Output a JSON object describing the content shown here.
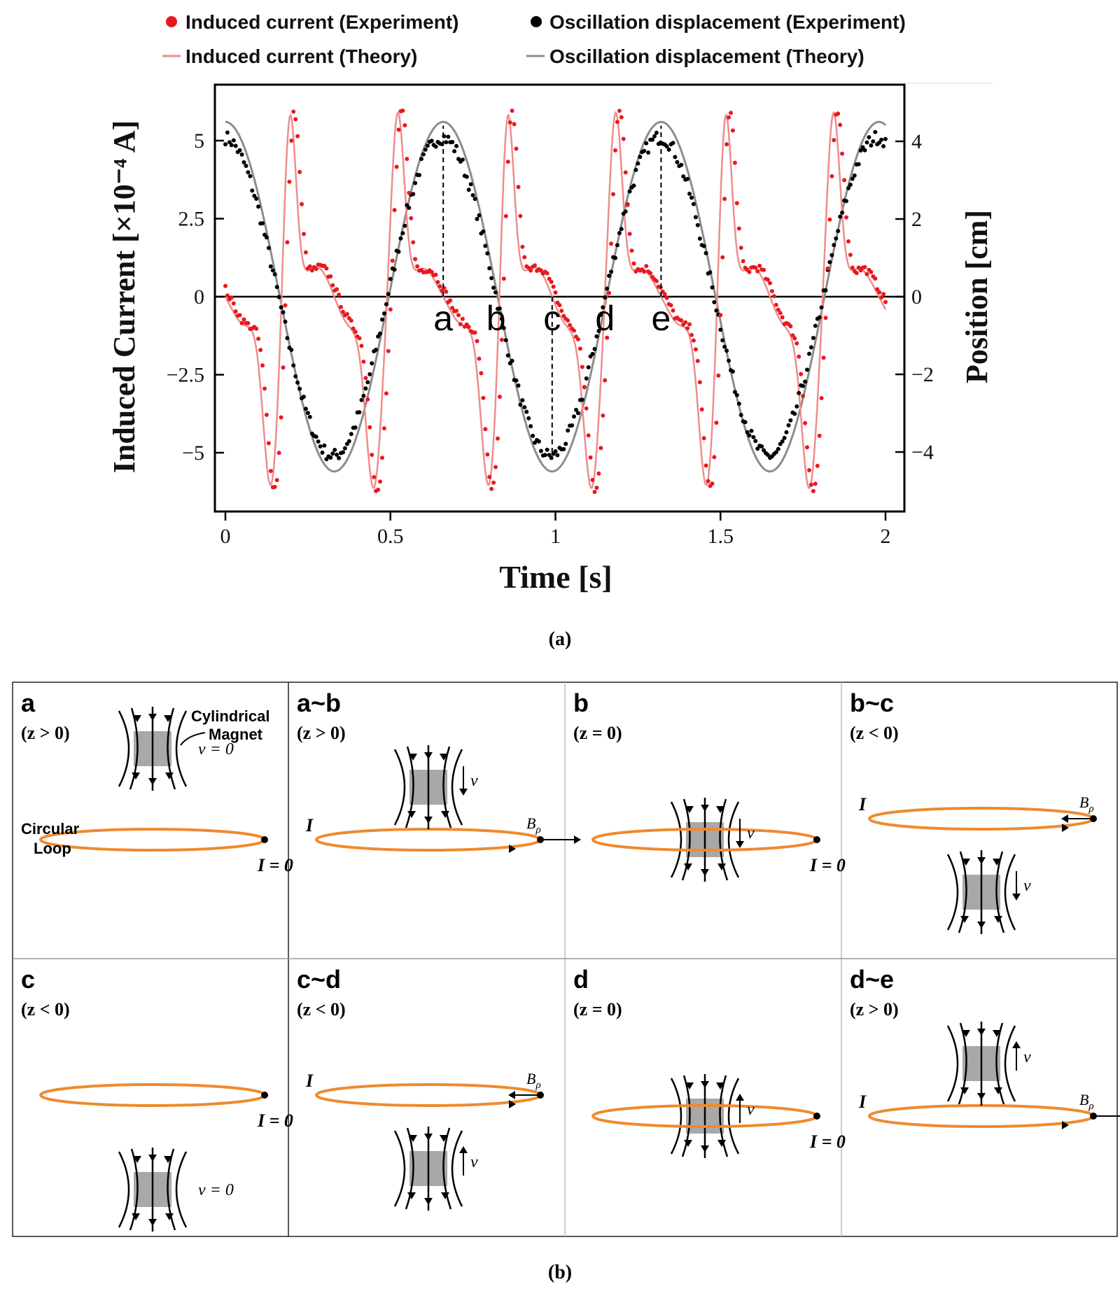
{
  "figure": {
    "caption_a": "(a)",
    "caption_b": "(b)"
  },
  "chart_data": {
    "type": "line",
    "xlabel": "Time [s]",
    "ylabel_left": "Induced Current [×10⁻⁴ A]",
    "ylabel_right": "Position [cm]",
    "xlim": [
      0,
      2
    ],
    "ylim_left": [
      -6.5,
      6.8
    ],
    "ylim_right": [
      -5.2,
      5.44
    ],
    "x_ticks": [
      "0",
      "0.5",
      "1",
      "1.5",
      "2"
    ],
    "y_left_ticks": [
      "−5",
      "−2.5",
      "0",
      "2.5",
      "5"
    ],
    "y_right_ticks": [
      "−4",
      "−2",
      "0",
      "2",
      "4"
    ],
    "legend_position": "top",
    "legend": [
      {
        "label": "Induced current (Experiment)",
        "marker": "dot",
        "color": "#e8191e"
      },
      {
        "label": "Oscillation displacement (Experiment)",
        "marker": "dot",
        "color": "#000000"
      },
      {
        "label": "Induced current (Theory)",
        "marker": "line",
        "color": "#f08c8c"
      },
      {
        "label": "Oscillation displacement (Theory)",
        "marker": "line",
        "color": "#8c8c8c"
      }
    ],
    "series": [
      {
        "name": "Oscillation displacement (Theory)",
        "axis": "right",
        "model": "cosine",
        "amplitude_cm": 4.5,
        "period_s": 0.66,
        "color": "#8c8c8c"
      },
      {
        "name": "Induced current (Theory)",
        "axis": "left",
        "model": "pulse",
        "peak_1e-4A": 6.0,
        "period_s": 0.66,
        "color": "#f08c8c"
      },
      {
        "name": "Oscillation displacement (Experiment)",
        "axis": "right",
        "model": "cosine",
        "amplitude_cm": 4.1,
        "period_s": 0.66,
        "color": "#000000"
      },
      {
        "name": "Induced current (Experiment)",
        "axis": "left",
        "model": "pulse",
        "peak_1e-4A": 6.1,
        "period_s": 0.66,
        "color": "#e8191e"
      }
    ],
    "markers": [
      {
        "label": "a",
        "t": 0.66,
        "line_to": 5.4
      },
      {
        "label": "b",
        "t": 0.82
      },
      {
        "label": "c",
        "t": 0.99,
        "line_to": -5.0
      },
      {
        "label": "d",
        "t": 1.15
      },
      {
        "label": "e",
        "t": 1.32,
        "line_to": 5.4
      }
    ]
  },
  "panels": [
    {
      "id": "a",
      "title": "a",
      "cond": "(z > 0)",
      "magnet": "above",
      "vel": "v = 0",
      "arrow": "none",
      "current": "I = 0",
      "magnet_label": "Cylindrical Magnet",
      "loop_label": "Circular Loop"
    },
    {
      "id": "a-b",
      "title": "a~b",
      "cond": "(z > 0)",
      "magnet": "near-above",
      "vel": "v",
      "arrow": "down",
      "current": "I",
      "field": "B",
      "field_sub": "ρ",
      "field_dir": "out"
    },
    {
      "id": "b",
      "title": "b",
      "cond": "(z = 0)",
      "magnet": "center",
      "vel": "v",
      "arrow": "down",
      "current": "I = 0"
    },
    {
      "id": "b-c",
      "title": "b~c",
      "cond": "(z < 0)",
      "magnet": "near-below",
      "vel": "v",
      "arrow": "down",
      "current": "I",
      "field": "B",
      "field_sub": "ρ",
      "field_dir": "in"
    },
    {
      "id": "c",
      "title": "c",
      "cond": "(z < 0)",
      "magnet": "below",
      "vel": "v = 0",
      "arrow": "none",
      "current": "I = 0"
    },
    {
      "id": "c-d",
      "title": "c~d",
      "cond": "(z < 0)",
      "magnet": "near-below",
      "vel": "v",
      "arrow": "up",
      "current": "I",
      "field": "B",
      "field_sub": "ρ",
      "field_dir": "in"
    },
    {
      "id": "d",
      "title": "d",
      "cond": "(z = 0)",
      "magnet": "center",
      "vel": "v",
      "arrow": "up",
      "current": "I = 0"
    },
    {
      "id": "d-e",
      "title": "d~e",
      "cond": "(z > 0)",
      "magnet": "near-above",
      "vel": "v",
      "arrow": "up",
      "current": "I",
      "field": "B",
      "field_sub": "ρ",
      "field_dir": "out"
    }
  ]
}
